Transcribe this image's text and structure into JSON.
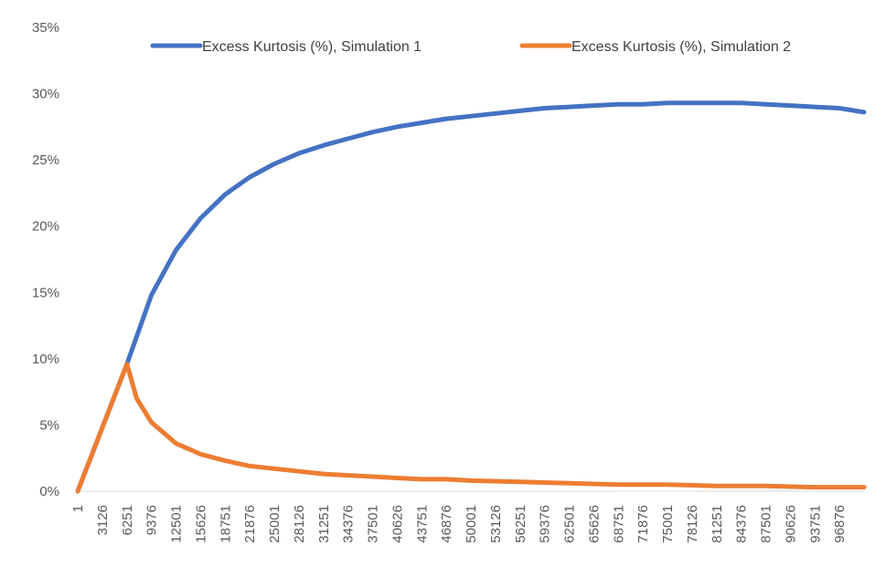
{
  "chart_data": {
    "type": "line",
    "title": "",
    "xlabel": "",
    "ylabel": "",
    "x_tick_labels": [
      "1",
      "3126",
      "6251",
      "9376",
      "12501",
      "15626",
      "18751",
      "21876",
      "25001",
      "28126",
      "31251",
      "34376",
      "37501",
      "40626",
      "43751",
      "46876",
      "50001",
      "53126",
      "56251",
      "59376",
      "62501",
      "65626",
      "68751",
      "71876",
      "75001",
      "78126",
      "81251",
      "84376",
      "87501",
      "90626",
      "93751",
      "96876"
    ],
    "x_range": [
      1,
      100000
    ],
    "y_ticks": [
      0,
      5,
      10,
      15,
      20,
      25,
      30,
      35
    ],
    "y_tick_labels": [
      "0%",
      "5%",
      "10%",
      "15%",
      "20%",
      "25%",
      "30%",
      "35%"
    ],
    "ylim": [
      0,
      35
    ],
    "grid": false,
    "legend_position": "top",
    "series": [
      {
        "name": "Excess Kurtosis (%), Simulation 1",
        "color": "#4472C4",
        "x": [
          1,
          6251,
          9376,
          12501,
          15626,
          18751,
          21876,
          25001,
          28126,
          31251,
          34376,
          37501,
          40626,
          43751,
          46876,
          50001,
          53126,
          56251,
          59376,
          62501,
          65626,
          68751,
          71876,
          75001,
          78126,
          81251,
          84376,
          87501,
          90626,
          93751,
          96876,
          100000
        ],
        "values": [
          0,
          9.6,
          14.8,
          18.2,
          20.6,
          22.4,
          23.7,
          24.7,
          25.5,
          26.1,
          26.6,
          27.1,
          27.5,
          27.8,
          28.1,
          28.3,
          28.5,
          28.7,
          28.9,
          29.0,
          29.1,
          29.2,
          29.2,
          29.3,
          29.3,
          29.3,
          29.3,
          29.2,
          29.1,
          29.0,
          28.9,
          28.6
        ]
      },
      {
        "name": "Excess Kurtosis (%), Simulation 2",
        "color": "#ED7D31",
        "x": [
          1,
          6251,
          7500,
          9376,
          12501,
          15626,
          18751,
          21876,
          25001,
          28126,
          31251,
          34376,
          37501,
          40626,
          43751,
          46876,
          50001,
          56251,
          62501,
          68751,
          75001,
          81251,
          87501,
          93751,
          100000
        ],
        "values": [
          0,
          9.6,
          7.0,
          5.2,
          3.6,
          2.8,
          2.3,
          1.9,
          1.7,
          1.5,
          1.3,
          1.2,
          1.1,
          1.0,
          0.9,
          0.9,
          0.8,
          0.7,
          0.6,
          0.5,
          0.5,
          0.4,
          0.4,
          0.3,
          0.3
        ]
      }
    ]
  }
}
